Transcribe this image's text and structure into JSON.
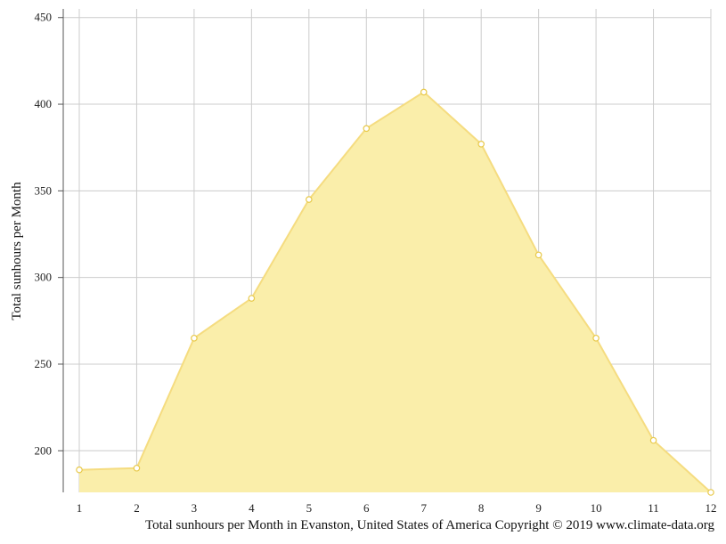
{
  "chart_data": {
    "type": "area",
    "x": [
      1,
      2,
      3,
      4,
      5,
      6,
      7,
      8,
      9,
      10,
      11,
      12
    ],
    "series": [
      {
        "values": [
          189,
          190,
          265,
          288,
          345,
          386,
          407,
          377,
          313,
          265,
          206,
          176
        ]
      }
    ],
    "ylabel": "Total sunhours per Month",
    "xlabel": "",
    "caption": "Total sunhours per Month in Evanston, United States of America Copyright © 2019 www.climate-data.org",
    "yticks": [
      200,
      250,
      300,
      350,
      400,
      450
    ],
    "ylim": [
      176,
      455
    ],
    "xlim": [
      1,
      12
    ],
    "grid": true,
    "colors": {
      "fill": "#faeeaa",
      "line": "#f5dc80",
      "marker_fill": "#ffffff",
      "marker_stroke": "#e8c94a"
    }
  }
}
